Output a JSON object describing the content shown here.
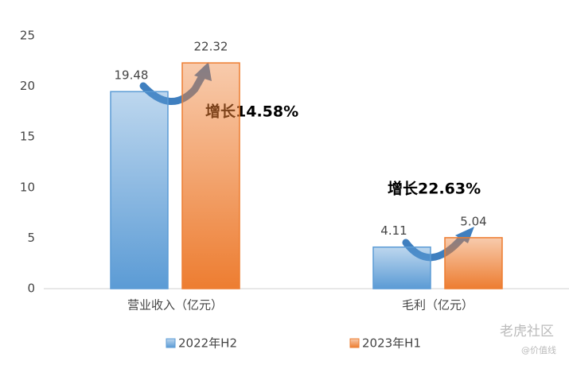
{
  "chart_data": {
    "type": "bar",
    "categories": [
      "营业收入（亿元）",
      "毛利（亿元）"
    ],
    "series": [
      {
        "name": "2022年H2",
        "color": "#5b9bd5",
        "values": [
          19.48,
          4.11
        ]
      },
      {
        "name": "2023年H1",
        "color": "#ed7d31",
        "values": [
          22.32,
          5.04
        ]
      }
    ],
    "ylim": [
      0,
      25
    ],
    "yticks": [
      0,
      5,
      10,
      15,
      20,
      25
    ],
    "grid": false,
    "annotations": [
      "增长14.58%",
      "增长22.63%"
    ],
    "legend": "bottom",
    "watermark": [
      "老虎社区",
      "@价值线"
    ]
  }
}
